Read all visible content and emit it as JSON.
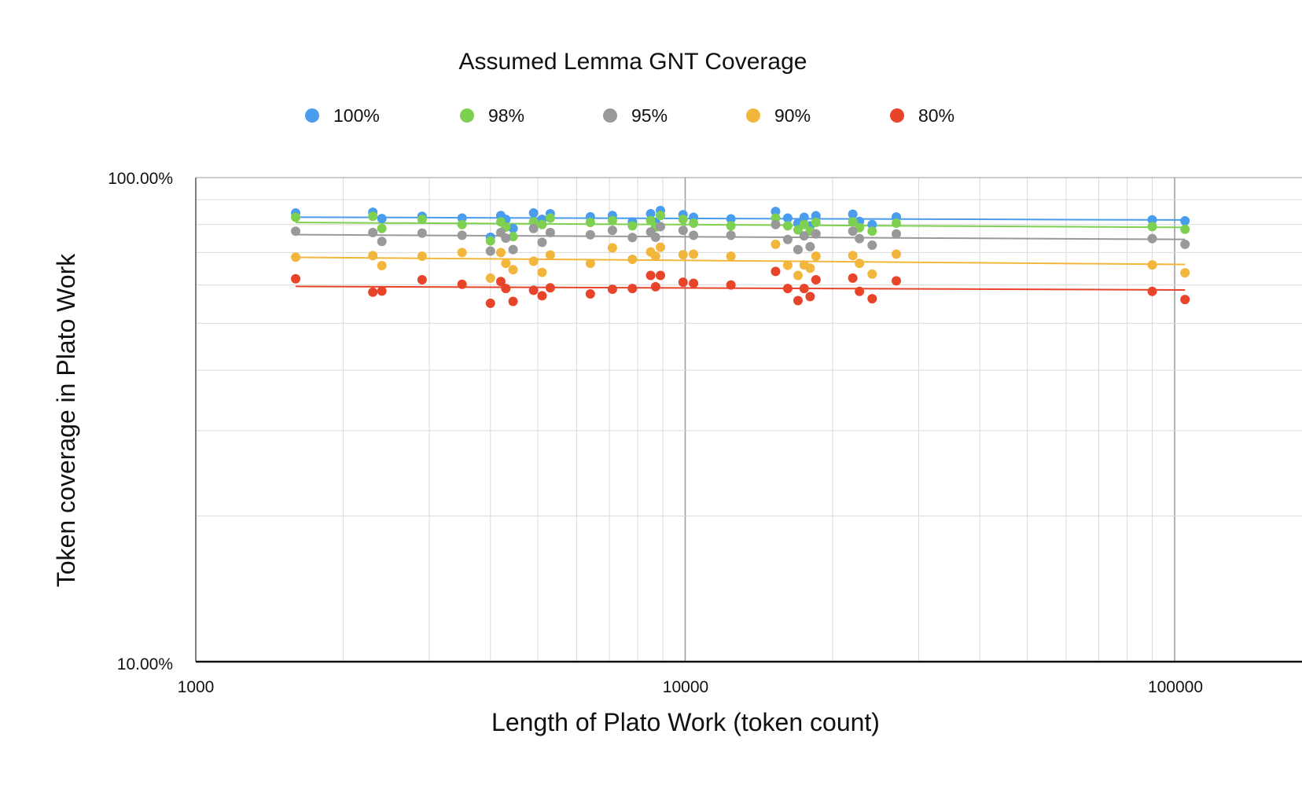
{
  "chart_data": {
    "type": "scatter",
    "title": "Assumed Lemma GNT Coverage",
    "xlabel": "Length of Plato Work (token count)",
    "ylabel": "Token coverage in Plato Work",
    "x_scale": "log",
    "y_scale": "log",
    "xlim": [
      1000,
      200000
    ],
    "ylim": [
      0.1,
      1.0
    ],
    "x_ticks": [
      "1000",
      "10000",
      "100000"
    ],
    "y_ticks": [
      "100.00%",
      "10.00%"
    ],
    "grid": true,
    "trendlines": true,
    "legend_position": "top",
    "x": [
      1600,
      2300,
      2400,
      2900,
      3500,
      4000,
      4200,
      4300,
      4450,
      4900,
      5100,
      5300,
      6400,
      7100,
      7800,
      8500,
      8700,
      8900,
      9900,
      10400,
      12400,
      15300,
      16200,
      17000,
      17500,
      18000,
      18500,
      22000,
      22700,
      24100,
      27000,
      90000,
      105000
    ],
    "series": [
      {
        "name": "100%",
        "color": "#4a9ced",
        "values": [
          0.845,
          0.848,
          0.823,
          0.832,
          0.825,
          0.753,
          0.835,
          0.82,
          0.785,
          0.845,
          0.82,
          0.842,
          0.83,
          0.835,
          0.81,
          0.842,
          0.808,
          0.855,
          0.838,
          0.828,
          0.822,
          0.851,
          0.825,
          0.805,
          0.828,
          0.795,
          0.834,
          0.84,
          0.812,
          0.8,
          0.829,
          0.818,
          0.814
        ]
      },
      {
        "name": "98%",
        "color": "#7ed150",
        "values": [
          0.828,
          0.832,
          0.785,
          0.82,
          0.8,
          0.74,
          0.81,
          0.79,
          0.755,
          0.81,
          0.8,
          0.825,
          0.808,
          0.815,
          0.795,
          0.815,
          0.79,
          0.835,
          0.82,
          0.805,
          0.795,
          0.825,
          0.795,
          0.78,
          0.8,
          0.775,
          0.808,
          0.81,
          0.788,
          0.775,
          0.805,
          0.792,
          0.782
        ]
      },
      {
        "name": "95%",
        "color": "#999999",
        "values": [
          0.775,
          0.77,
          0.738,
          0.768,
          0.76,
          0.705,
          0.77,
          0.75,
          0.71,
          0.785,
          0.735,
          0.77,
          0.762,
          0.778,
          0.752,
          0.772,
          0.753,
          0.792,
          0.778,
          0.76,
          0.76,
          0.8,
          0.745,
          0.71,
          0.758,
          0.72,
          0.765,
          0.775,
          0.748,
          0.725,
          0.765,
          0.748,
          0.728
        ]
      },
      {
        "name": "90%",
        "color": "#f2b63c",
        "values": [
          0.685,
          0.69,
          0.658,
          0.688,
          0.7,
          0.62,
          0.7,
          0.665,
          0.645,
          0.672,
          0.637,
          0.692,
          0.665,
          0.716,
          0.678,
          0.702,
          0.688,
          0.718,
          0.693,
          0.695,
          0.688,
          0.728,
          0.659,
          0.628,
          0.66,
          0.65,
          0.688,
          0.69,
          0.665,
          0.632,
          0.695,
          0.66,
          0.636
        ]
      },
      {
        "name": "80%",
        "color": "#e8442a",
        "values": [
          0.618,
          0.58,
          0.583,
          0.615,
          0.602,
          0.55,
          0.61,
          0.59,
          0.555,
          0.585,
          0.57,
          0.592,
          0.575,
          0.588,
          0.59,
          0.628,
          0.595,
          0.628,
          0.608,
          0.605,
          0.6,
          0.64,
          0.59,
          0.557,
          0.59,
          0.568,
          0.615,
          0.62,
          0.582,
          0.562,
          0.612,
          0.582,
          0.56
        ]
      }
    ]
  }
}
